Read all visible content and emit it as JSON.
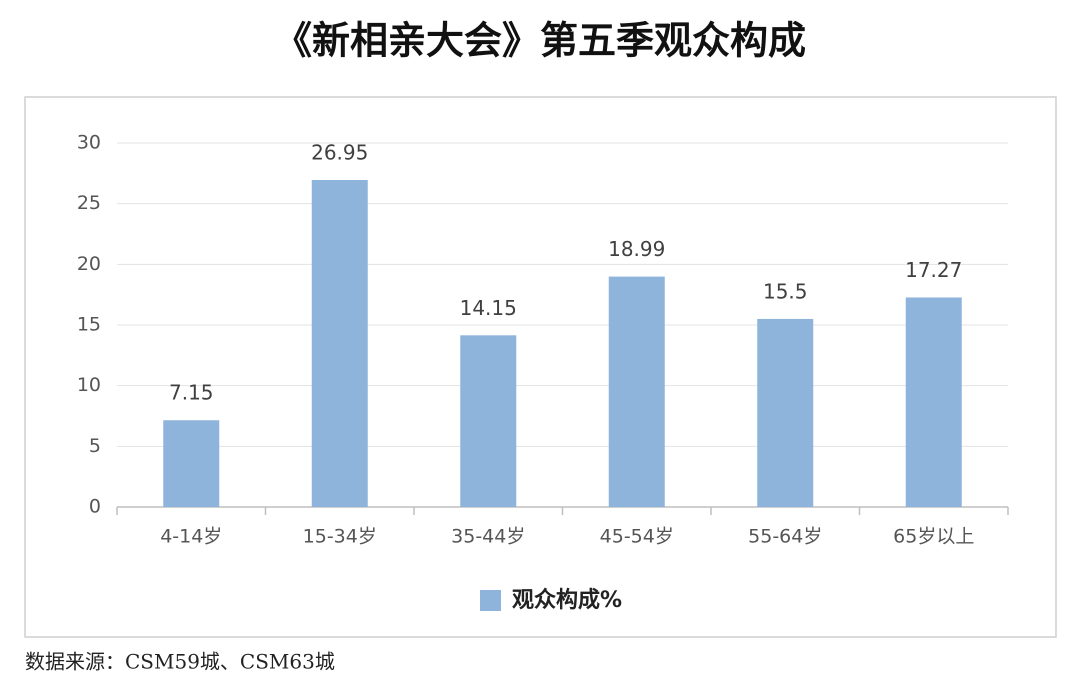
{
  "chart_data": {
    "type": "bar",
    "title": "《新相亲大会》第五季观众构成",
    "categories": [
      "4-14岁",
      "15-34岁",
      "35-44岁",
      "45-54岁",
      "55-64岁",
      "65岁以上"
    ],
    "series": [
      {
        "name": "观众构成%",
        "color": "#8fb4dc",
        "values": [
          7.15,
          26.95,
          14.15,
          18.99,
          15.5,
          17.27
        ]
      }
    ],
    "ylim": [
      0,
      30
    ],
    "yticks": [
      0,
      5,
      10,
      15,
      20,
      25,
      30
    ],
    "grid": true,
    "legend": "bottom",
    "source": "数据来源：CSM59城、CSM63城"
  }
}
